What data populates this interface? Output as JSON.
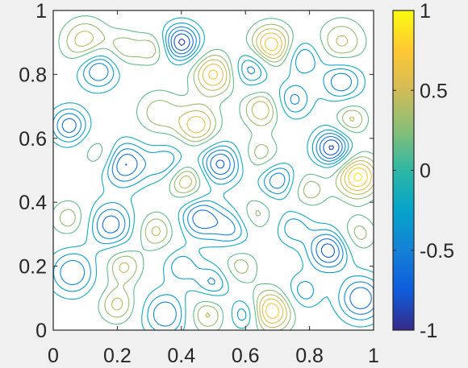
{
  "chart_data": {
    "type": "contour",
    "title": "",
    "xlabel": "",
    "ylabel": "",
    "xlim": [
      0,
      1
    ],
    "ylim": [
      0,
      1
    ],
    "xticks": [
      0,
      0.2,
      0.4,
      0.6,
      0.8,
      1
    ],
    "xtick_labels": [
      "0",
      "0.2",
      "0.4",
      "0.6",
      "0.8",
      "1"
    ],
    "yticks": [
      0,
      0.2,
      0.4,
      0.6,
      0.8,
      1
    ],
    "ytick_labels": [
      "0",
      "0.2",
      "0.4",
      "0.6",
      "0.8",
      "1"
    ],
    "grid": false,
    "colormap": "parula",
    "colormap_stops": [
      "#352a87",
      "#0f5cdd",
      "#1481d6",
      "#06a4ca",
      "#2eb7a4",
      "#87bf77",
      "#d1bb59",
      "#fec832",
      "#f9fb0e"
    ],
    "clim": [
      -1,
      1
    ],
    "colorbar": {
      "ticks": [
        1,
        0.5,
        0,
        -0.5,
        -1
      ],
      "tick_labels": [
        "1",
        "0.5",
        "0",
        "-0.5",
        "-1"
      ]
    },
    "contour_levels": [
      -0.9,
      -0.75,
      -0.6,
      -0.45,
      -0.3,
      -0.15,
      0.15,
      0.3,
      0.45,
      0.6,
      0.75,
      0.9
    ],
    "features": [
      {
        "x": 0.05,
        "y": 0.64,
        "amp": -0.7,
        "s": 0.04
      },
      {
        "x": 0.1,
        "y": 0.9,
        "amp": 0.6,
        "s": 0.05
      },
      {
        "x": 0.14,
        "y": 0.82,
        "amp": -0.7,
        "s": 0.045
      },
      {
        "x": 0.22,
        "y": 0.88,
        "amp": 0.4,
        "s": 0.04
      },
      {
        "x": 0.15,
        "y": 0.55,
        "amp": 0.4,
        "s": 0.04
      },
      {
        "x": 0.22,
        "y": 0.52,
        "amp": -0.8,
        "s": 0.05
      },
      {
        "x": 0.18,
        "y": 0.33,
        "amp": -0.7,
        "s": 0.05
      },
      {
        "x": 0.05,
        "y": 0.35,
        "amp": 0.4,
        "s": 0.04
      },
      {
        "x": 0.06,
        "y": 0.18,
        "amp": -0.6,
        "s": 0.05
      },
      {
        "x": 0.22,
        "y": 0.2,
        "amp": 0.5,
        "s": 0.04
      },
      {
        "x": 0.2,
        "y": 0.08,
        "amp": 0.5,
        "s": 0.04
      },
      {
        "x": 0.35,
        "y": 0.05,
        "amp": -0.6,
        "s": 0.05
      },
      {
        "x": 0.4,
        "y": 0.9,
        "amp": -0.95,
        "s": 0.04
      },
      {
        "x": 0.31,
        "y": 0.88,
        "amp": 0.4,
        "s": 0.035
      },
      {
        "x": 0.5,
        "y": 0.8,
        "amp": 0.8,
        "s": 0.045
      },
      {
        "x": 0.62,
        "y": 0.82,
        "amp": -0.6,
        "s": 0.04
      },
      {
        "x": 0.68,
        "y": 0.89,
        "amp": 0.9,
        "s": 0.045
      },
      {
        "x": 0.78,
        "y": 0.85,
        "amp": -0.5,
        "s": 0.04
      },
      {
        "x": 0.9,
        "y": 0.9,
        "amp": 0.5,
        "s": 0.05
      },
      {
        "x": 0.75,
        "y": 0.72,
        "amp": -0.5,
        "s": 0.04
      },
      {
        "x": 0.65,
        "y": 0.69,
        "amp": 0.6,
        "s": 0.04
      },
      {
        "x": 0.9,
        "y": 0.78,
        "amp": -0.6,
        "s": 0.045
      },
      {
        "x": 0.33,
        "y": 0.68,
        "amp": 0.4,
        "s": 0.05
      },
      {
        "x": 0.45,
        "y": 0.64,
        "amp": 0.7,
        "s": 0.045
      },
      {
        "x": 0.52,
        "y": 0.52,
        "amp": -0.8,
        "s": 0.045
      },
      {
        "x": 0.36,
        "y": 0.52,
        "amp": -0.5,
        "s": 0.045
      },
      {
        "x": 0.41,
        "y": 0.47,
        "amp": 0.7,
        "s": 0.04
      },
      {
        "x": 0.65,
        "y": 0.55,
        "amp": 0.4,
        "s": 0.04
      },
      {
        "x": 0.7,
        "y": 0.47,
        "amp": -0.6,
        "s": 0.04
      },
      {
        "x": 0.87,
        "y": 0.57,
        "amp": -0.95,
        "s": 0.04
      },
      {
        "x": 0.93,
        "y": 0.66,
        "amp": 0.5,
        "s": 0.035
      },
      {
        "x": 0.95,
        "y": 0.48,
        "amp": 0.95,
        "s": 0.045
      },
      {
        "x": 0.8,
        "y": 0.44,
        "amp": 0.4,
        "s": 0.04
      },
      {
        "x": 0.32,
        "y": 0.31,
        "amp": 0.5,
        "s": 0.04
      },
      {
        "x": 0.46,
        "y": 0.35,
        "amp": -0.7,
        "s": 0.045
      },
      {
        "x": 0.56,
        "y": 0.32,
        "amp": -0.5,
        "s": 0.045
      },
      {
        "x": 0.63,
        "y": 0.36,
        "amp": 0.4,
        "s": 0.04
      },
      {
        "x": 0.75,
        "y": 0.32,
        "amp": -0.4,
        "s": 0.04
      },
      {
        "x": 0.86,
        "y": 0.25,
        "amp": -0.85,
        "s": 0.045
      },
      {
        "x": 0.4,
        "y": 0.2,
        "amp": -0.4,
        "s": 0.04
      },
      {
        "x": 0.58,
        "y": 0.2,
        "amp": 0.4,
        "s": 0.04
      },
      {
        "x": 0.5,
        "y": 0.15,
        "amp": -0.5,
        "s": 0.04
      },
      {
        "x": 0.48,
        "y": 0.05,
        "amp": 0.5,
        "s": 0.04
      },
      {
        "x": 0.68,
        "y": 0.06,
        "amp": 0.9,
        "s": 0.045
      },
      {
        "x": 0.78,
        "y": 0.12,
        "amp": -0.4,
        "s": 0.04
      },
      {
        "x": 0.96,
        "y": 0.1,
        "amp": -0.75,
        "s": 0.05
      },
      {
        "x": 0.95,
        "y": 0.3,
        "amp": 0.4,
        "s": 0.04
      },
      {
        "x": 0.6,
        "y": 0.05,
        "amp": -0.5,
        "s": 0.035
      }
    ]
  }
}
